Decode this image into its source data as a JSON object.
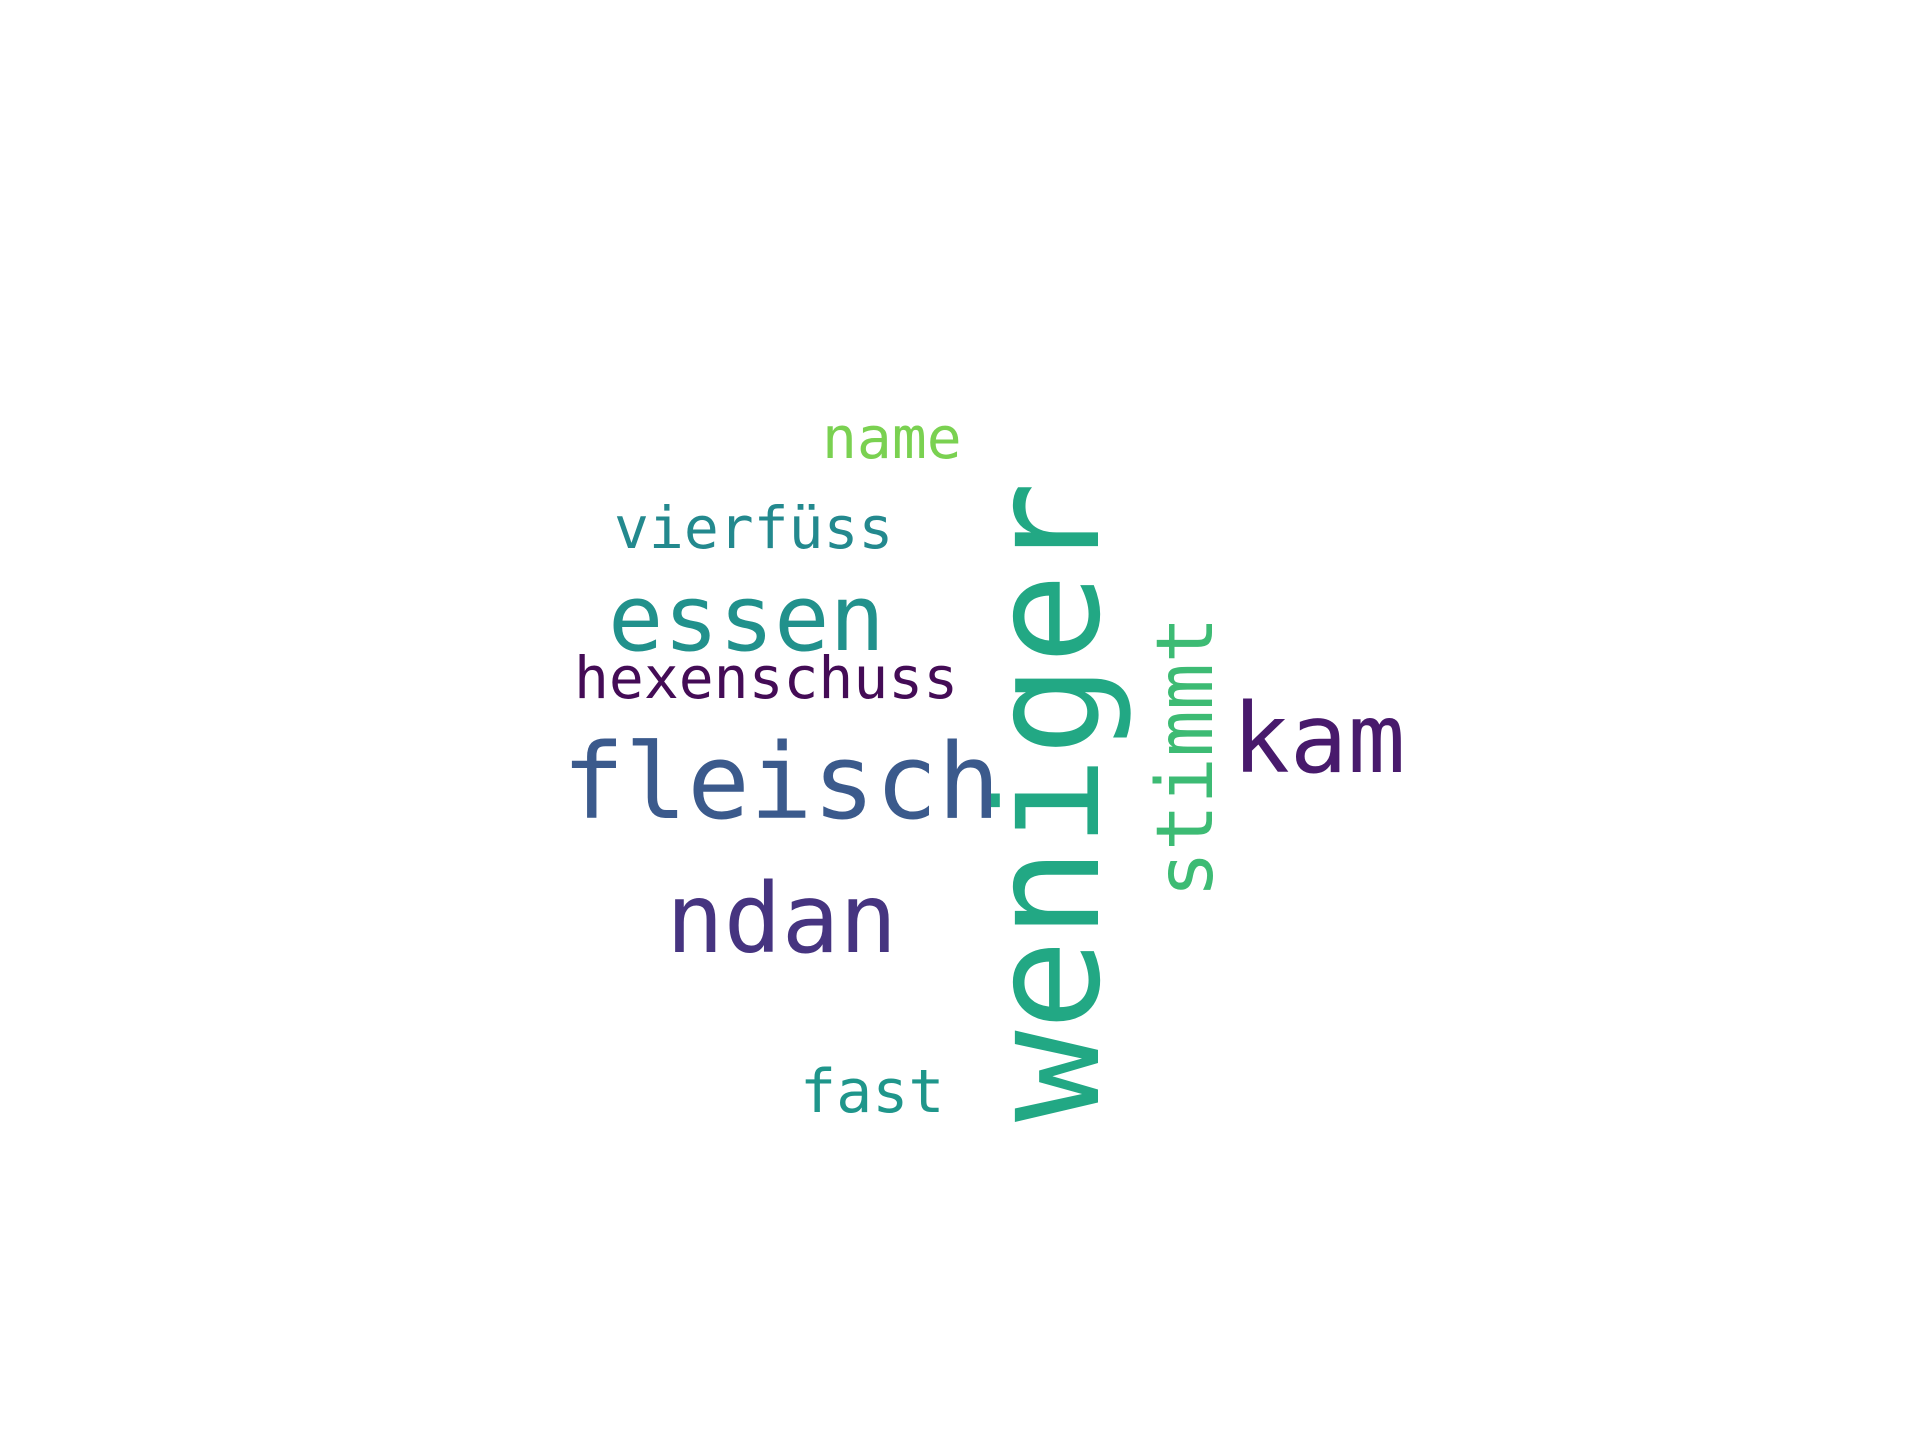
{
  "words": [
    {
      "text": "weniger",
      "color": "#22a884",
      "orientation": "vertical"
    },
    {
      "text": "fleisch",
      "color": "#3b5a8c",
      "orientation": "horizontal"
    },
    {
      "text": "essen",
      "color": "#21918c",
      "orientation": "horizontal"
    },
    {
      "text": "ndan",
      "color": "#463480",
      "orientation": "horizontal"
    },
    {
      "text": "kam",
      "color": "#481a6c",
      "orientation": "horizontal"
    },
    {
      "text": "stimmt",
      "color": "#3dbb74",
      "orientation": "vertical"
    },
    {
      "text": "hexenschuss",
      "color": "#440c56",
      "orientation": "horizontal"
    },
    {
      "text": "vierfüss",
      "color": "#23898e",
      "orientation": "horizontal"
    },
    {
      "text": "name",
      "color": "#7ad151",
      "orientation": "horizontal"
    },
    {
      "text": "fast",
      "color": "#1f968b",
      "orientation": "horizontal"
    }
  ]
}
